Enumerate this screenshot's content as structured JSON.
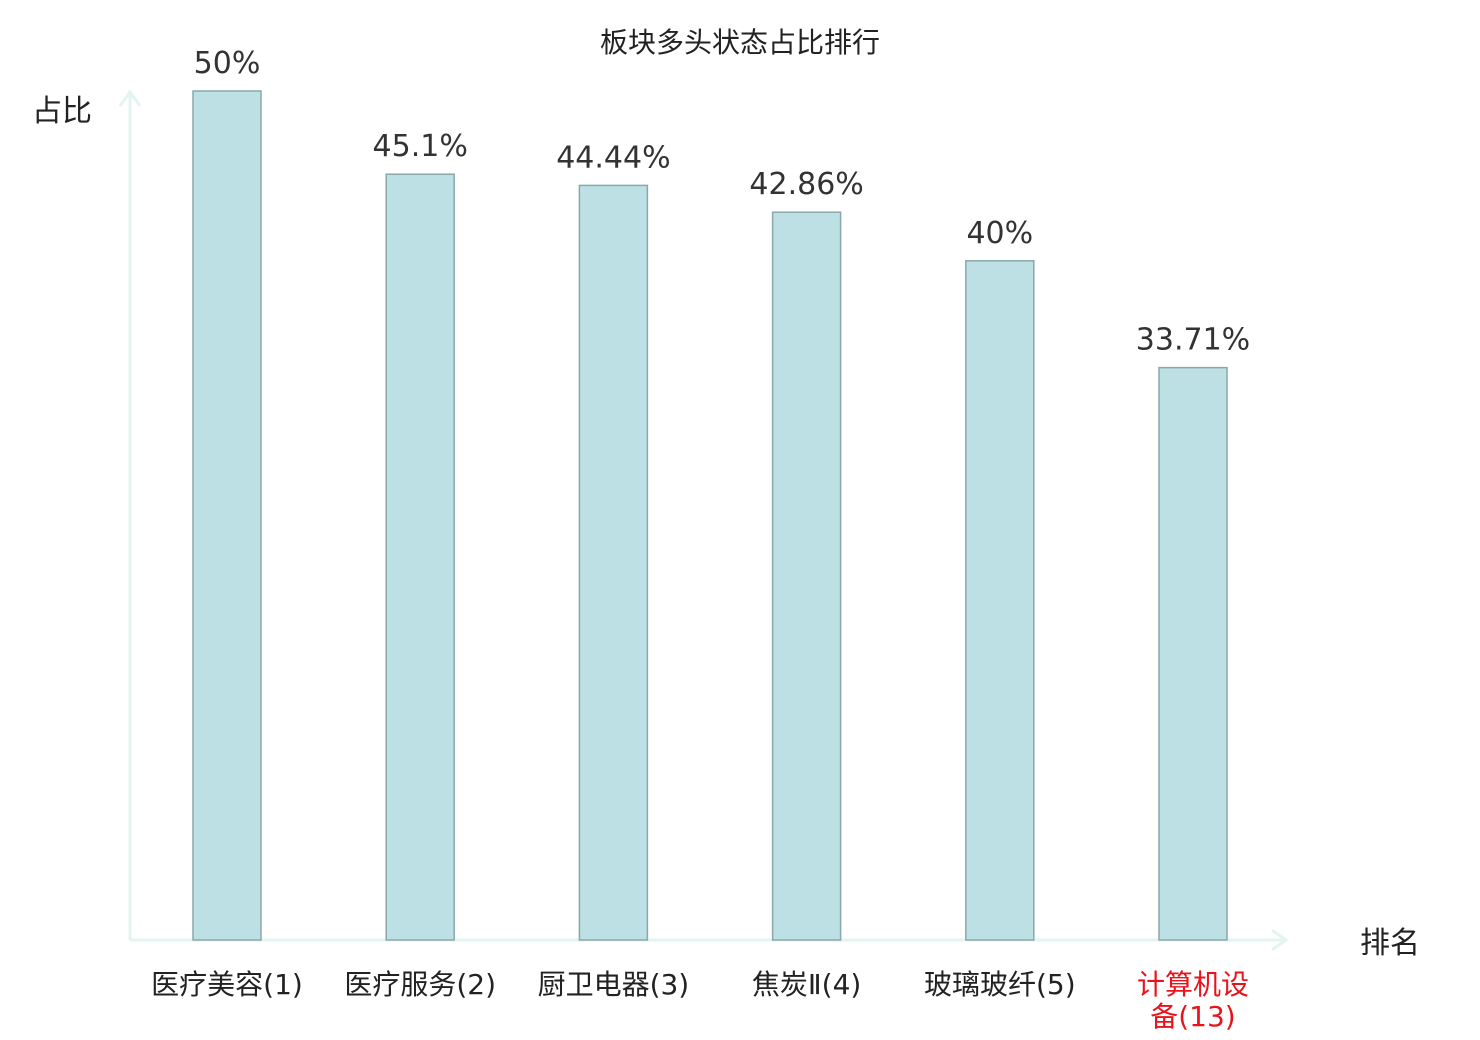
{
  "chart_data": {
    "type": "bar",
    "title": "板块多头状态占比排行",
    "ylabel": "占比",
    "xlabel": "排名",
    "categories": [
      [
        "医疗美容(1)"
      ],
      [
        "医疗服务(2)"
      ],
      [
        "厨卫电器(3)"
      ],
      [
        "焦炭Ⅱ(4)"
      ],
      [
        "玻璃玻纤(5)"
      ],
      [
        "计算机设",
        "备(13)"
      ]
    ],
    "values": [
      50,
      45.1,
      44.44,
      42.86,
      40,
      33.71
    ],
    "value_labels": [
      "50%",
      "45.1%",
      "44.44%",
      "42.86%",
      "40%",
      "33.71%"
    ],
    "highlight_index": 5,
    "ylim": [
      0,
      50
    ],
    "grid": false,
    "legend": "none",
    "colors": {
      "bar_fill": "#bce0e3",
      "bar_stroke": "#8aa8aa",
      "axis": "#e3f4f1",
      "highlight_text": "#e8141b",
      "text": "#222222"
    }
  }
}
